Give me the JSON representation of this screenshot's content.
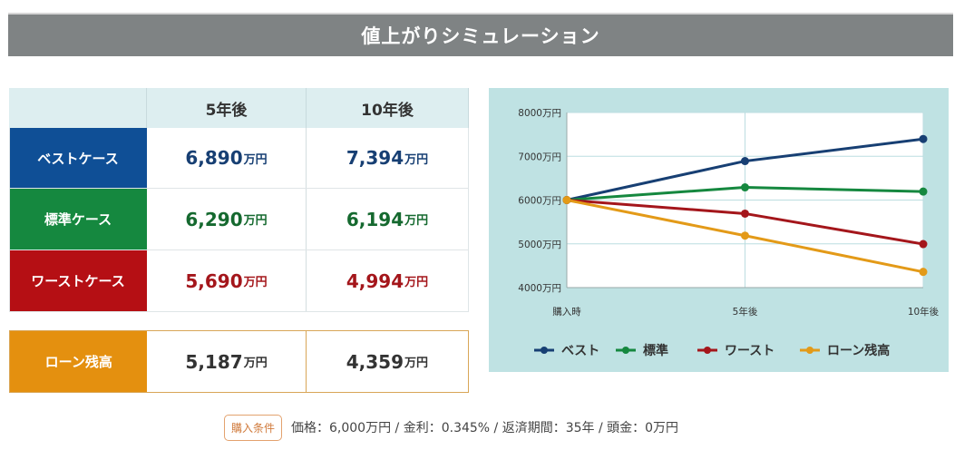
{
  "title": "値上がりシミュレーション",
  "table": {
    "columns": [
      "5年後",
      "10年後"
    ],
    "unit": "万円",
    "rows": [
      {
        "label": "ベストケース",
        "values": [
          "6,890",
          "7,394"
        ],
        "label_bg": "#0f4f96",
        "text_color": "#173f73"
      },
      {
        "label": "標準ケース",
        "values": [
          "6,290",
          "6,194"
        ],
        "label_bg": "#15883f",
        "text_color": "#15692f"
      },
      {
        "label": "ワーストケース",
        "values": [
          "5,690",
          "4,994"
        ],
        "label_bg": "#b50f14",
        "text_color": "#a4161b"
      }
    ],
    "loan": {
      "label": "ローン残高",
      "values": [
        "5,187",
        "4,359"
      ],
      "label_bg": "#e4900f"
    }
  },
  "chart_data": {
    "type": "line",
    "x": [
      "購入時",
      "5年後",
      "10年後"
    ],
    "ylim": [
      4000,
      8000
    ],
    "yticks": [
      {
        "value": 4000,
        "label": "4000万円"
      },
      {
        "value": 5000,
        "label": "5000万円"
      },
      {
        "value": 6000,
        "label": "6000万円"
      },
      {
        "value": 7000,
        "label": "7000万円"
      },
      {
        "value": 8000,
        "label": "8000万円"
      }
    ],
    "grid": true,
    "legend_position": "bottom",
    "series": [
      {
        "name": "ベスト",
        "values": [
          6000,
          6890,
          7394
        ],
        "color": "#173f73"
      },
      {
        "name": "標準",
        "values": [
          6000,
          6290,
          6194
        ],
        "color": "#15883f"
      },
      {
        "name": "ワースト",
        "values": [
          6000,
          5690,
          4994
        ],
        "color": "#a4161b"
      },
      {
        "name": "ローン残高",
        "values": [
          6000,
          5187,
          4359
        ],
        "color": "#e39a18"
      }
    ]
  },
  "condition": {
    "badge": "購入条件",
    "text": "価格：6,000万円 / 金利：0.345% / 返済期間：35年 / 頭金：0万円"
  }
}
